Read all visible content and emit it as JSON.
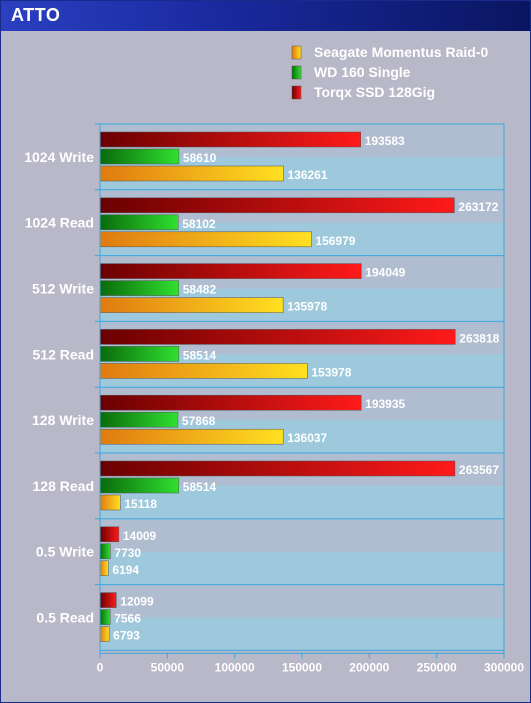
{
  "window": {
    "title": "ATTO"
  },
  "chart_data": {
    "type": "bar",
    "orientation": "horizontal",
    "title": "ATTO",
    "categories": [
      "1024 Write",
      "1024 Read",
      "512 Write",
      "512 Read",
      "128 Write",
      "128 Read",
      "0.5 Write",
      "0.5 Read"
    ],
    "series": [
      {
        "name": "Torqx SSD 128Gig",
        "color": "#e01010",
        "values": [
          193583,
          263172,
          194049,
          263818,
          193935,
          263567,
          14009,
          12099
        ]
      },
      {
        "name": "WD 160 Single",
        "color": "#20c020",
        "values": [
          58610,
          58102,
          58482,
          58514,
          57868,
          58514,
          7730,
          7566
        ]
      },
      {
        "name": "Seagate Momentus Raid-0",
        "color": "#f0c010",
        "values": [
          136261,
          156979,
          135978,
          153978,
          136037,
          15118,
          6194,
          6793
        ]
      }
    ],
    "legend_order": [
      "Seagate Momentus Raid-0",
      "WD 160 Single",
      "Torqx SSD 128Gig"
    ],
    "legend_position": "top-right",
    "xlim": [
      0,
      300000
    ],
    "xticks": [
      0,
      50000,
      100000,
      150000,
      200000,
      250000,
      300000
    ],
    "grid": true
  }
}
